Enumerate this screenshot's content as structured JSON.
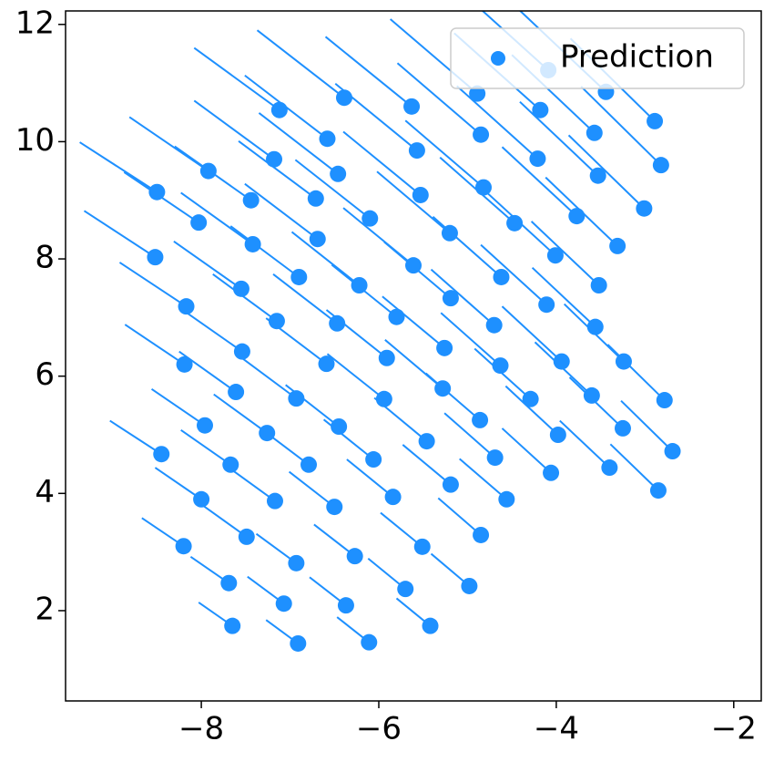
{
  "chart_data": {
    "type": "scatter",
    "xlim": [
      -9.53,
      -1.69
    ],
    "ylim": [
      0.46,
      12.23
    ],
    "xticks": [
      {
        "value": -8,
        "label": "−8"
      },
      {
        "value": -6,
        "label": "−6"
      },
      {
        "value": -4,
        "label": "−4"
      },
      {
        "value": -2,
        "label": "−2"
      }
    ],
    "yticks": [
      2,
      4,
      6,
      8,
      10,
      12
    ],
    "grid": false,
    "legend": "upper right",
    "series": [
      {
        "name": "Prediction",
        "color": "#1e90ff",
        "x": [
          -8.5,
          -8.52,
          -7.92,
          -8.03,
          -7.12,
          -7.18,
          -7.44,
          -7.42,
          -8.17,
          -7.55,
          -8.19,
          -7.54,
          -7.61,
          -7.96,
          -8.45,
          -7.67,
          -8.0,
          -7.26,
          -7.15,
          -6.9,
          -6.58,
          -6.39,
          -6.71,
          -6.69,
          -6.46,
          -6.1,
          -6.22,
          -6.47,
          -6.59,
          -6.93,
          -6.45,
          -6.79,
          -7.17,
          -6.5,
          -7.49,
          -8.2,
          -7.69,
          -7.07,
          -6.93,
          -7.65,
          -6.91,
          -6.37,
          -6.27,
          -5.84,
          -6.06,
          -5.94,
          -5.91,
          -5.8,
          -5.61,
          -5.53,
          -5.57,
          -5.63,
          -5.2,
          -5.19,
          -5.26,
          -5.28,
          -5.46,
          -5.19,
          -5.51,
          -5.7,
          -5.42,
          -6.11,
          -4.98,
          -4.85,
          -4.56,
          -4.69,
          -4.86,
          -4.63,
          -4.7,
          -4.62,
          -4.47,
          -4.82,
          -4.85,
          -4.89,
          -4.09,
          -4.18,
          -4.21,
          -3.77,
          -4.01,
          -4.11,
          -3.94,
          -4.29,
          -3.98,
          -4.06,
          -3.4,
          -3.25,
          -3.6,
          -3.24,
          -3.56,
          -3.52,
          -3.31,
          -3.53,
          -3.57,
          -3.44,
          -2.89,
          -2.82,
          -3.01,
          -2.78,
          -2.69,
          -2.85
        ],
        "values": [
          9.14,
          8.03,
          9.5,
          8.62,
          10.54,
          9.7,
          9.0,
          8.25,
          7.19,
          7.49,
          6.2,
          6.42,
          5.73,
          5.16,
          4.67,
          4.49,
          3.9,
          5.03,
          6.94,
          7.69,
          10.05,
          10.75,
          9.03,
          8.34,
          9.45,
          8.69,
          7.55,
          6.9,
          6.21,
          5.62,
          5.14,
          4.49,
          3.87,
          3.77,
          3.26,
          3.1,
          2.47,
          2.12,
          2.81,
          1.74,
          1.44,
          2.09,
          2.93,
          3.94,
          4.58,
          5.61,
          6.31,
          7.01,
          7.89,
          9.09,
          9.85,
          10.6,
          8.44,
          7.33,
          6.48,
          5.79,
          4.89,
          4.15,
          3.09,
          2.37,
          1.74,
          1.46,
          2.42,
          3.29,
          3.9,
          4.61,
          5.25,
          6.18,
          6.87,
          7.69,
          8.61,
          9.22,
          10.12,
          10.82,
          11.22,
          10.54,
          9.71,
          8.73,
          8.06,
          7.22,
          6.25,
          5.61,
          5.0,
          4.35,
          4.44,
          5.11,
          5.67,
          6.25,
          6.84,
          7.55,
          8.22,
          9.42,
          10.15,
          10.85,
          10.35,
          9.6,
          8.86,
          5.59,
          4.72,
          4.05
        ],
        "path_x": [
          -9.37,
          -9.32,
          -8.81,
          -8.87,
          -8.08,
          -8.08,
          -8.3,
          -8.23,
          -8.92,
          -8.31,
          -8.86,
          -8.23,
          -8.25,
          -8.56,
          -9.03,
          -8.23,
          -8.52,
          -7.86,
          -7.87,
          -7.67,
          -7.51,
          -7.37,
          -7.58,
          -7.51,
          -7.35,
          -6.94,
          -6.98,
          -7.19,
          -7.27,
          -7.57,
          -7.05,
          -7.35,
          -7.69,
          -7.01,
          -7.97,
          -8.67,
          -8.12,
          -7.48,
          -7.38,
          -8.03,
          -7.27,
          -6.78,
          -6.73,
          -6.36,
          -6.62,
          -6.58,
          -6.59,
          -6.53,
          -6.4,
          -6.4,
          -6.49,
          -6.6,
          -6.02,
          -5.94,
          -5.96,
          -5.93,
          -6.05,
          -5.73,
          -5.98,
          -6.12,
          -5.8,
          -6.47,
          -5.41,
          -5.33,
          -5.09,
          -5.26,
          -5.47,
          -5.3,
          -5.41,
          -5.39,
          -5.31,
          -5.7,
          -5.79,
          -5.87,
          -5.1,
          -5.15,
          -5.12,
          -4.61,
          -4.81,
          -4.85,
          -4.61,
          -4.92,
          -4.57,
          -4.61,
          -3.96,
          -3.85,
          -4.24,
          -3.91,
          -4.27,
          -4.28,
          -4.12,
          -4.41,
          -4.5,
          -4.42,
          -3.84,
          -3.72,
          -3.86,
          -3.42,
          -3.27,
          -3.39
        ],
        "path_y": [
          9.99,
          8.82,
          10.42,
          9.48,
          11.6,
          10.7,
          9.92,
          9.13,
          7.94,
          8.3,
          6.88,
          7.15,
          6.42,
          5.78,
          5.24,
          5.08,
          4.44,
          5.69,
          7.74,
          8.56,
          11.13,
          11.9,
          10.01,
          9.28,
          10.49,
          9.69,
          8.46,
          7.74,
          6.99,
          6.34,
          5.85,
          5.13,
          4.44,
          4.37,
          3.78,
          3.58,
          2.92,
          2.58,
          3.31,
          2.14,
          1.84,
          2.57,
          3.47,
          4.58,
          5.26,
          6.38,
          7.13,
          7.9,
          8.87,
          10.17,
          10.99,
          11.79,
          9.49,
          8.29,
          7.36,
          6.62,
          5.63,
          4.83,
          3.67,
          2.89,
          2.21,
          1.89,
          2.97,
          3.92,
          4.59,
          5.37,
          6.05,
          7.08,
          7.82,
          8.72,
          9.73,
          10.36,
          11.34,
          12.09,
          12.6,
          11.85,
          10.95,
          9.91,
          9.17,
          8.24,
          7.19,
          6.47,
          5.83,
          5.11,
          5.24,
          5.98,
          6.58,
          7.23,
          7.85,
          8.64,
          9.39,
          10.68,
          11.48,
          12.25,
          11.76,
          10.94,
          10.11,
          6.54,
          5.58,
          4.84
        ]
      }
    ]
  }
}
